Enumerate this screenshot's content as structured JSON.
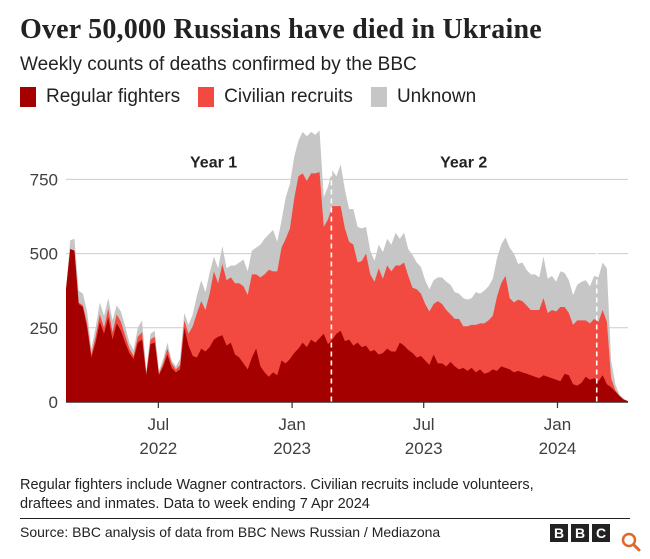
{
  "header": {
    "title": "Over 50,000 Russians have died in Ukraine",
    "subtitle": "Weekly counts of deaths confirmed by the BBC"
  },
  "legend": [
    {
      "label": "Regular fighters",
      "color": "#a40000"
    },
    {
      "label": "Civilian recruits",
      "color": "#f24a40"
    },
    {
      "label": "Unknown",
      "color": "#c6c6c6"
    }
  ],
  "chart_data": {
    "type": "area",
    "stacked": true,
    "title": "Over 50,000 Russians have died in Ukraine",
    "subtitle": "Weekly counts of deaths confirmed by the BBC",
    "xlabel": "",
    "ylabel": "",
    "ylim": [
      0,
      950
    ],
    "yticks": [
      0,
      250,
      500,
      750
    ],
    "grid": true,
    "x_start_week": "2022-02-24",
    "x_end_week": "2024-04-07",
    "x_tick_labels": [
      {
        "date": "2022-07-01",
        "line1": "Jul",
        "line2": "2022"
      },
      {
        "date": "2023-01-01",
        "line1": "Jan",
        "line2": "2023"
      },
      {
        "date": "2023-07-01",
        "line1": "Jul",
        "line2": "2023"
      },
      {
        "date": "2024-01-01",
        "line1": "Jan",
        "line2": "2024"
      }
    ],
    "annotations": [
      {
        "text": "Year 1",
        "date": "2022-09-15",
        "level": 790
      },
      {
        "text": "Year 2",
        "date": "2023-08-25",
        "level": 790
      }
    ],
    "year_markers": [
      "2023-02-24",
      "2024-02-24"
    ],
    "series": [
      {
        "name": "Regular fighters",
        "color": "#a40000",
        "values": [
          380,
          515,
          510,
          330,
          320,
          250,
          150,
          200,
          270,
          230,
          285,
          210,
          265,
          240,
          200,
          165,
          145,
          200,
          210,
          90,
          195,
          200,
          90,
          120,
          160,
          115,
          100,
          110,
          250,
          190,
          155,
          150,
          180,
          170,
          185,
          210,
          220,
          225,
          190,
          200,
          160,
          150,
          130,
          110,
          150,
          180,
          120,
          100,
          85,
          100,
          90,
          140,
          130,
          145,
          165,
          180,
          200,
          185,
          210,
          200,
          215,
          230,
          195,
          210,
          230,
          240,
          205,
          210,
          190,
          200,
          185,
          190,
          170,
          175,
          160,
          165,
          180,
          170,
          170,
          200,
          190,
          175,
          165,
          150,
          155,
          140,
          125,
          160,
          130,
          130,
          120,
          135,
          120,
          110,
          115,
          105,
          115,
          100,
          110,
          95,
          100,
          110,
          105,
          120,
          115,
          110,
          100,
          105,
          100,
          95,
          90,
          85,
          80,
          90,
          85,
          80,
          75,
          70,
          95,
          90,
          60,
          55,
          65,
          85,
          75,
          80,
          70,
          90,
          60,
          50,
          35,
          20,
          8,
          3
        ]
      },
      {
        "name": "Civilian recruits",
        "color": "#f24a40",
        "values": [
          0,
          0,
          0,
          5,
          5,
          15,
          10,
          20,
          25,
          20,
          30,
          25,
          30,
          30,
          25,
          15,
          10,
          20,
          25,
          5,
          15,
          20,
          5,
          10,
          20,
          15,
          10,
          15,
          25,
          40,
          100,
          150,
          160,
          140,
          180,
          230,
          180,
          240,
          220,
          220,
          240,
          250,
          260,
          250,
          280,
          250,
          300,
          330,
          360,
          340,
          350,
          380,
          420,
          440,
          520,
          580,
          570,
          560,
          560,
          570,
          560,
          360,
          420,
          450,
          430,
          420,
          380,
          330,
          340,
          270,
          290,
          310,
          260,
          230,
          290,
          250,
          280,
          270,
          290,
          260,
          280,
          250,
          220,
          230,
          210,
          190,
          180,
          170,
          210,
          200,
          190,
          160,
          160,
          170,
          140,
          150,
          145,
          160,
          155,
          170,
          175,
          180,
          250,
          280,
          310,
          240,
          235,
          240,
          240,
          230,
          220,
          225,
          230,
          260,
          215,
          230,
          230,
          250,
          225,
          210,
          200,
          220,
          210,
          190,
          190,
          200,
          200,
          220,
          210,
          30,
          5,
          0,
          0,
          0
        ]
      },
      {
        "name": "Unknown",
        "color": "#c6c6c6",
        "values": [
          0,
          30,
          40,
          40,
          40,
          40,
          20,
          30,
          40,
          40,
          35,
          40,
          30,
          35,
          30,
          20,
          20,
          30,
          40,
          10,
          20,
          20,
          10,
          15,
          20,
          10,
          10,
          20,
          25,
          30,
          40,
          60,
          70,
          60,
          70,
          50,
          50,
          60,
          40,
          40,
          60,
          70,
          90,
          80,
          80,
          90,
          110,
          120,
          120,
          140,
          100,
          90,
          140,
          150,
          140,
          120,
          140,
          150,
          140,
          130,
          140,
          100,
          110,
          120,
          100,
          140,
          130,
          110,
          120,
          120,
          110,
          90,
          80,
          70,
          80,
          90,
          90,
          90,
          110,
          90,
          100,
          90,
          110,
          90,
          90,
          80,
          75,
          80,
          80,
          90,
          95,
          100,
          90,
          85,
          95,
          90,
          90,
          110,
          100,
          110,
          115,
          125,
          130,
          130,
          130,
          170,
          165,
          120,
          130,
          120,
          120,
          120,
          110,
          140,
          115,
          115,
          100,
          120,
          115,
          110,
          100,
          120,
          130,
          135,
          125,
          145,
          150,
          160,
          180,
          60,
          20,
          5,
          3,
          0
        ]
      }
    ]
  },
  "footnote": {
    "line1": "Regular fighters include Wagner contractors. Civilian recruits include volunteers,",
    "line2": "draftees and inmates. Data to week ending 7 Apr 2024"
  },
  "source": "Source: BBC analysis of data from BBC News Russian / Mediazona",
  "logo": {
    "letters": [
      "B",
      "B",
      "C"
    ]
  }
}
